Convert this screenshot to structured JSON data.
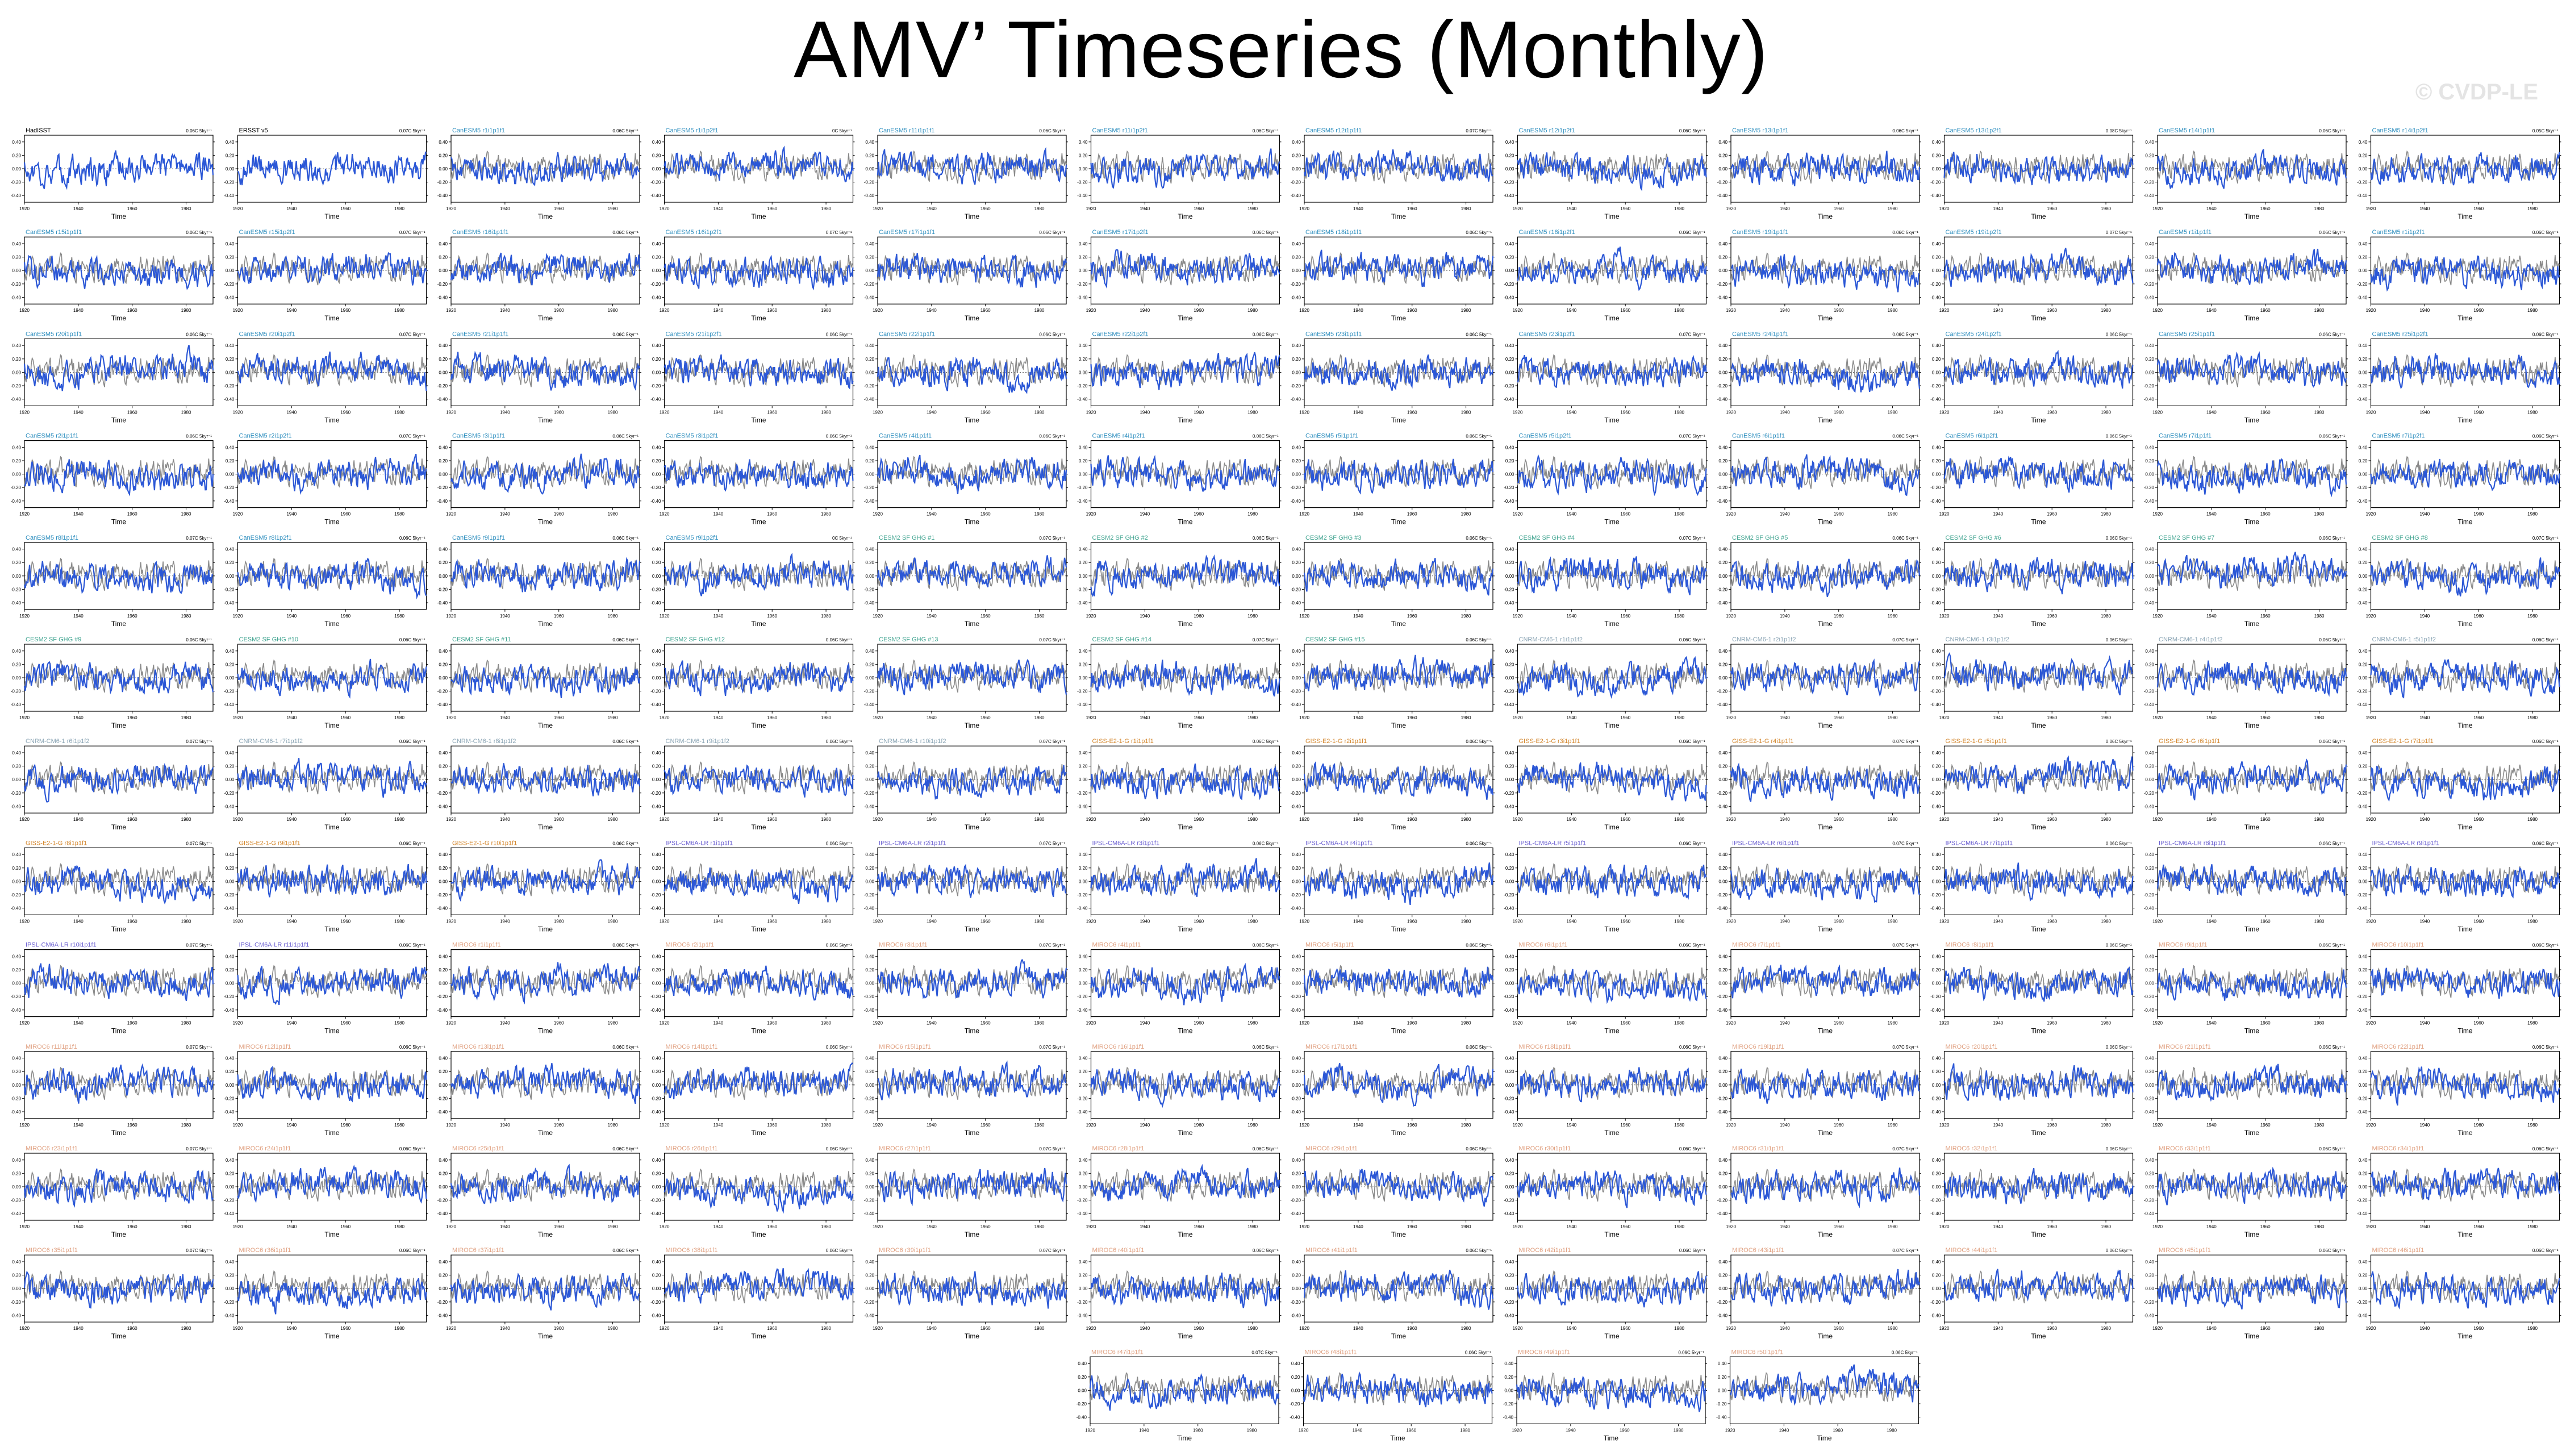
{
  "page": {
    "title": "AMV’ Timeseries (Monthly)",
    "watermark": "© CVDP-LE"
  },
  "colors": {
    "model_line": "#2b57d6",
    "obs_line": "#8a8a8a",
    "label_cesm2_lens": "#2f8fbf",
    "label_canesm5": "#2f8fbf",
    "label_cesm2_sf": "#3fa38f",
    "label_cnrm": "#8aa4b4",
    "label_giss": "#d3862c",
    "label_ipsl": "#6b5fd1",
    "label_miroc": "#e0a080",
    "label_obs": "#000000"
  },
  "chart_data": {
    "type": "line",
    "xlabel": "Time",
    "x_ticks": [
      "1920",
      "1940",
      "1960",
      "1980"
    ],
    "y_ticks": [
      "0.40",
      "0.20",
      "0.00",
      "-0.20",
      "-0.40"
    ],
    "ylim": [
      -0.5,
      0.5
    ],
    "panels": [
      {
        "label": "HadISST",
        "trend": "0.06C 5kyr⁻¹",
        "group": "obs"
      },
      {
        "label": "ERSST v5",
        "trend": "0.07C 5kyr⁻¹",
        "group": "obs"
      },
      {
        "label": "CanESM5 r1i1p1f1",
        "trend": "0.06C 5kyr⁻¹",
        "group": "canesm5"
      },
      {
        "label": "CanESM5 r1i1p2f1",
        "trend": "0C 5kyr⁻¹",
        "group": "canesm5"
      },
      {
        "label": "CanESM5 r11i1p1f1",
        "trend": "0.06C 5kyr⁻¹",
        "group": "canesm5"
      },
      {
        "label": "CanESM5 r11i1p2f1",
        "trend": "0.06C 5kyr⁻¹",
        "group": "canesm5"
      },
      {
        "label": "CanESM5 r12i1p1f1",
        "trend": "0.07C 5kyr⁻¹",
        "group": "canesm5"
      },
      {
        "label": "CanESM5 r12i1p2f1",
        "trend": "0.06C 5kyr⁻¹",
        "group": "canesm5"
      },
      {
        "label": "CanESM5 r13i1p1f1",
        "trend": "0.06C 5kyr⁻¹",
        "group": "canesm5"
      },
      {
        "label": "CanESM5 r13i1p2f1",
        "trend": "0.08C 5kyr⁻¹",
        "group": "canesm5"
      },
      {
        "label": "CanESM5 r14i1p1f1",
        "trend": "0.06C 5kyr⁻¹",
        "group": "canesm5"
      },
      {
        "label": "CanESM5 r14i1p2f1",
        "trend": "0.05C 5kyr⁻¹",
        "group": "canesm5"
      },
      {
        "label": "CanESM5 r15i1p1f1",
        "trend": "0.06C 5kyr⁻¹",
        "group": "canesm5"
      },
      {
        "label": "CanESM5 r15i1p2f1",
        "trend": "0.07C 5kyr⁻¹",
        "group": "canesm5"
      },
      {
        "label": "CanESM5 r16i1p1f1",
        "trend": "0.06C 5kyr⁻¹",
        "group": "canesm5"
      },
      {
        "label": "CanESM5 r16i1p2f1",
        "trend": "0.07C 5kyr⁻¹",
        "group": "canesm5"
      },
      {
        "label": "CanESM5 r17i1p1f1",
        "trend": "0.06C 5kyr⁻¹",
        "group": "canesm5"
      },
      {
        "label": "CanESM5 r17i1p2f1",
        "trend": "0.06C 5kyr⁻¹",
        "group": "canesm5"
      },
      {
        "label": "CanESM5 r18i1p1f1",
        "trend": "0.06C 5kyr⁻¹",
        "group": "canesm5"
      },
      {
        "label": "CanESM5 r18i1p2f1",
        "trend": "0.06C 5kyr⁻¹",
        "group": "canesm5"
      },
      {
        "label": "CanESM5 r19i1p1f1",
        "trend": "0.06C 5kyr⁻¹",
        "group": "canesm5"
      },
      {
        "label": "CanESM5 r19i1p2f1",
        "trend": "0.07C 5kyr⁻¹",
        "group": "canesm5"
      },
      {
        "label": "CanESM5 r1i1p1f1",
        "trend": "0.06C 5kyr⁻¹",
        "group": "canesm5"
      },
      {
        "label": "CanESM5 r1i1p2f1",
        "trend": "0.06C 5kyr⁻¹",
        "group": "canesm5"
      },
      {
        "label": "CanESM5 r20i1p1f1",
        "trend": "0.06C 5kyr⁻¹",
        "group": "canesm5"
      },
      {
        "label": "CanESM5 r20i1p2f1",
        "trend": "0.07C 5kyr⁻¹",
        "group": "canesm5"
      },
      {
        "label": "CanESM5 r21i1p1f1",
        "trend": "0.06C 5kyr⁻¹",
        "group": "canesm5"
      },
      {
        "label": "CanESM5 r21i1p2f1",
        "trend": "0.06C 5kyr⁻¹",
        "group": "canesm5"
      },
      {
        "label": "CanESM5 r22i1p1f1",
        "trend": "0.06C 5kyr⁻¹",
        "group": "canesm5"
      },
      {
        "label": "CanESM5 r22i1p2f1",
        "trend": "0.06C 5kyr⁻¹",
        "group": "canesm5"
      },
      {
        "label": "CanESM5 r23i1p1f1",
        "trend": "0.06C 5kyr⁻¹",
        "group": "canesm5"
      },
      {
        "label": "CanESM5 r23i1p2f1",
        "trend": "0.07C 5kyr⁻¹",
        "group": "canesm5"
      },
      {
        "label": "CanESM5 r24i1p1f1",
        "trend": "0.06C 5kyr⁻¹",
        "group": "canesm5"
      },
      {
        "label": "CanESM5 r24i1p2f1",
        "trend": "0.06C 5kyr⁻¹",
        "group": "canesm5"
      },
      {
        "label": "CanESM5 r25i1p1f1",
        "trend": "0.06C 5kyr⁻¹",
        "group": "canesm5"
      },
      {
        "label": "CanESM5 r25i1p2f1",
        "trend": "0.06C 5kyr⁻¹",
        "group": "canesm5"
      },
      {
        "label": "CanESM5 r2i1p1f1",
        "trend": "0.06C 5kyr⁻¹",
        "group": "canesm5"
      },
      {
        "label": "CanESM5 r2i1p2f1",
        "trend": "0.07C 5kyr⁻¹",
        "group": "canesm5"
      },
      {
        "label": "CanESM5 r3i1p1f1",
        "trend": "0.06C 5kyr⁻¹",
        "group": "canesm5"
      },
      {
        "label": "CanESM5 r3i1p2f1",
        "trend": "0.06C 5kyr⁻¹",
        "group": "canesm5"
      },
      {
        "label": "CanESM5 r4i1p1f1",
        "trend": "0.06C 5kyr⁻¹",
        "group": "canesm5"
      },
      {
        "label": "CanESM5 r4i1p2f1",
        "trend": "0.06C 5kyr⁻¹",
        "group": "canesm5"
      },
      {
        "label": "CanESM5 r5i1p1f1",
        "trend": "0.06C 5kyr⁻¹",
        "group": "canesm5"
      },
      {
        "label": "CanESM5 r5i1p2f1",
        "trend": "0.07C 5kyr⁻¹",
        "group": "canesm5"
      },
      {
        "label": "CanESM5 r6i1p1f1",
        "trend": "0.06C 5kyr⁻¹",
        "group": "canesm5"
      },
      {
        "label": "CanESM5 r6i1p2f1",
        "trend": "0.06C 5kyr⁻¹",
        "group": "canesm5"
      },
      {
        "label": "CanESM5 r7i1p1f1",
        "trend": "0.06C 5kyr⁻¹",
        "group": "canesm5"
      },
      {
        "label": "CanESM5 r7i1p2f1",
        "trend": "0.06C 5kyr⁻¹",
        "group": "canesm5"
      },
      {
        "label": "CanESM5 r8i1p1f1",
        "trend": "0.07C 5kyr⁻¹",
        "group": "canesm5"
      },
      {
        "label": "CanESM5 r8i1p2f1",
        "trend": "0.06C 5kyr⁻¹",
        "group": "canesm5"
      },
      {
        "label": "CanESM5 r9i1p1f1",
        "trend": "0.06C 5kyr⁻¹",
        "group": "canesm5"
      },
      {
        "label": "CanESM5 r9i1p2f1",
        "trend": "0C 5kyr⁻¹",
        "group": "canesm5"
      },
      {
        "label": "CESM2 SF GHG #1",
        "trend": "0.07C 5kyr⁻¹",
        "group": "cesm2_sf"
      },
      {
        "label": "CESM2 SF GHG #2",
        "trend": "0.06C 5kyr⁻¹",
        "group": "cesm2_sf"
      },
      {
        "label": "CESM2 SF GHG #3",
        "trend": "0.06C 5kyr⁻¹",
        "group": "cesm2_sf"
      },
      {
        "label": "CESM2 SF GHG #4",
        "trend": "0.07C 5kyr⁻¹",
        "group": "cesm2_sf"
      },
      {
        "label": "CESM2 SF GHG #5",
        "trend": "0.06C 5kyr⁻¹",
        "group": "cesm2_sf"
      },
      {
        "label": "CESM2 SF GHG #6",
        "trend": "0.06C 5kyr⁻¹",
        "group": "cesm2_sf"
      },
      {
        "label": "CESM2 SF GHG #7",
        "trend": "0.06C 5kyr⁻¹",
        "group": "cesm2_sf"
      },
      {
        "label": "CESM2 SF GHG #8",
        "trend": "0.07C 5kyr⁻¹",
        "group": "cesm2_sf"
      },
      {
        "label": "CESM2 SF GHG #9",
        "trend": "0.06C 5kyr⁻¹",
        "group": "cesm2_sf"
      },
      {
        "label": "CESM2 SF GHG #10",
        "trend": "0.06C 5kyr⁻¹",
        "group": "cesm2_sf"
      },
      {
        "label": "CESM2 SF GHG #11",
        "trend": "0.06C 5kyr⁻¹",
        "group": "cesm2_sf"
      },
      {
        "label": "CESM2 SF GHG #12",
        "trend": "0.06C 5kyr⁻¹",
        "group": "cesm2_sf"
      },
      {
        "label": "CESM2 SF GHG #13",
        "trend": "0.07C 5kyr⁻¹",
        "group": "cesm2_sf"
      },
      {
        "label": "CESM2 SF GHG #14",
        "trend": "0.07C 5kyr⁻¹",
        "group": "cesm2_sf"
      },
      {
        "label": "CESM2 SF GHG #15",
        "trend": "0.06C 5kyr⁻¹",
        "group": "cesm2_sf"
      },
      {
        "label": "CNRM-CM6-1 r1i1p1f2",
        "trend": "0.06C 5kyr⁻¹",
        "group": "cnrm"
      },
      {
        "label": "CNRM-CM6-1 r2i1p1f2",
        "trend": "0.07C 5kyr⁻¹",
        "group": "cnrm"
      },
      {
        "label": "CNRM-CM6-1 r3i1p1f2",
        "trend": "0.06C 5kyr⁻¹",
        "group": "cnrm"
      },
      {
        "label": "CNRM-CM6-1 r4i1p1f2",
        "trend": "0.06C 5kyr⁻¹",
        "group": "cnrm"
      },
      {
        "label": "CNRM-CM6-1 r5i1p1f2",
        "trend": "0.06C 5kyr⁻¹",
        "group": "cnrm"
      },
      {
        "label": "CNRM-CM6-1 r6i1p1f2",
        "trend": "0.07C 5kyr⁻¹",
        "group": "cnrm"
      },
      {
        "label": "CNRM-CM6-1 r7i1p1f2",
        "trend": "0.06C 5kyr⁻¹",
        "group": "cnrm"
      },
      {
        "label": "CNRM-CM6-1 r8i1p1f2",
        "trend": "0.06C 5kyr⁻¹",
        "group": "cnrm"
      },
      {
        "label": "CNRM-CM6-1 r9i1p1f2",
        "trend": "0.06C 5kyr⁻¹",
        "group": "cnrm"
      },
      {
        "label": "CNRM-CM6-1 r10i1p1f2",
        "trend": "0.07C 5kyr⁻¹",
        "group": "cnrm"
      },
      {
        "label": "GISS-E2-1-G r1i1p1f1",
        "trend": "0.06C 5kyr⁻¹",
        "group": "giss"
      },
      {
        "label": "GISS-E2-1-G r2i1p1f1",
        "trend": "0.06C 5kyr⁻¹",
        "group": "giss"
      },
      {
        "label": "GISS-E2-1-G r3i1p1f1",
        "trend": "0.06C 5kyr⁻¹",
        "group": "giss"
      },
      {
        "label": "GISS-E2-1-G r4i1p1f1",
        "trend": "0.07C 5kyr⁻¹",
        "group": "giss"
      },
      {
        "label": "GISS-E2-1-G r5i1p1f1",
        "trend": "0.06C 5kyr⁻¹",
        "group": "giss"
      },
      {
        "label": "GISS-E2-1-G r6i1p1f1",
        "trend": "0.06C 5kyr⁻¹",
        "group": "giss"
      },
      {
        "label": "GISS-E2-1-G r7i1p1f1",
        "trend": "0.06C 5kyr⁻¹",
        "group": "giss"
      },
      {
        "label": "GISS-E2-1-G r8i1p1f1",
        "trend": "0.07C 5kyr⁻¹",
        "group": "giss"
      },
      {
        "label": "GISS-E2-1-G r9i1p1f1",
        "trend": "0.06C 5kyr⁻¹",
        "group": "giss"
      },
      {
        "label": "GISS-E2-1-G r10i1p1f1",
        "trend": "0.06C 5kyr⁻¹",
        "group": "giss"
      },
      {
        "label": "IPSL-CM6A-LR r1i1p1f1",
        "trend": "0.06C 5kyr⁻¹",
        "group": "ipsl"
      },
      {
        "label": "IPSL-CM6A-LR r2i1p1f1",
        "trend": "0.07C 5kyr⁻¹",
        "group": "ipsl"
      },
      {
        "label": "IPSL-CM6A-LR r3i1p1f1",
        "trend": "0.06C 5kyr⁻¹",
        "group": "ipsl"
      },
      {
        "label": "IPSL-CM6A-LR r4i1p1f1",
        "trend": "0.06C 5kyr⁻¹",
        "group": "ipsl"
      },
      {
        "label": "IPSL-CM6A-LR r5i1p1f1",
        "trend": "0.06C 5kyr⁻¹",
        "group": "ipsl"
      },
      {
        "label": "IPSL-CM6A-LR r6i1p1f1",
        "trend": "0.07C 5kyr⁻¹",
        "group": "ipsl"
      },
      {
        "label": "IPSL-CM6A-LR r7i1p1f1",
        "trend": "0.06C 5kyr⁻¹",
        "group": "ipsl"
      },
      {
        "label": "IPSL-CM6A-LR r8i1p1f1",
        "trend": "0.06C 5kyr⁻¹",
        "group": "ipsl"
      },
      {
        "label": "IPSL-CM6A-LR r9i1p1f1",
        "trend": "0.06C 5kyr⁻¹",
        "group": "ipsl"
      },
      {
        "label": "IPSL-CM6A-LR r10i1p1f1",
        "trend": "0.07C 5kyr⁻¹",
        "group": "ipsl"
      },
      {
        "label": "IPSL-CM6A-LR r11i1p1f1",
        "trend": "0.06C 5kyr⁻¹",
        "group": "ipsl"
      },
      {
        "label": "MIROC6 r1i1p1f1",
        "trend": "0.06C 5kyr⁻¹",
        "group": "miroc"
      },
      {
        "label": "MIROC6 r2i1p1f1",
        "trend": "0.06C 5kyr⁻¹",
        "group": "miroc"
      },
      {
        "label": "MIROC6 r3i1p1f1",
        "trend": "0.07C 5kyr⁻¹",
        "group": "miroc"
      },
      {
        "label": "MIROC6 r4i1p1f1",
        "trend": "0.06C 5kyr⁻¹",
        "group": "miroc"
      },
      {
        "label": "MIROC6 r5i1p1f1",
        "trend": "0.06C 5kyr⁻¹",
        "group": "miroc"
      },
      {
        "label": "MIROC6 r6i1p1f1",
        "trend": "0.06C 5kyr⁻¹",
        "group": "miroc"
      },
      {
        "label": "MIROC6 r7i1p1f1",
        "trend": "0.07C 5kyr⁻¹",
        "group": "miroc"
      },
      {
        "label": "MIROC6 r8i1p1f1",
        "trend": "0.06C 5kyr⁻¹",
        "group": "miroc"
      },
      {
        "label": "MIROC6 r9i1p1f1",
        "trend": "0.06C 5kyr⁻¹",
        "group": "miroc"
      },
      {
        "label": "MIROC6 r10i1p1f1",
        "trend": "0.06C 5kyr⁻¹",
        "group": "miroc"
      },
      {
        "label": "MIROC6 r11i1p1f1",
        "trend": "0.07C 5kyr⁻¹",
        "group": "miroc"
      },
      {
        "label": "MIROC6 r12i1p1f1",
        "trend": "0.06C 5kyr⁻¹",
        "group": "miroc"
      },
      {
        "label": "MIROC6 r13i1p1f1",
        "trend": "0.06C 5kyr⁻¹",
        "group": "miroc"
      },
      {
        "label": "MIROC6 r14i1p1f1",
        "trend": "0.06C 5kyr⁻¹",
        "group": "miroc"
      },
      {
        "label": "MIROC6 r15i1p1f1",
        "trend": "0.07C 5kyr⁻¹",
        "group": "miroc"
      },
      {
        "label": "MIROC6 r16i1p1f1",
        "trend": "0.06C 5kyr⁻¹",
        "group": "miroc"
      },
      {
        "label": "MIROC6 r17i1p1f1",
        "trend": "0.06C 5kyr⁻¹",
        "group": "miroc"
      },
      {
        "label": "MIROC6 r18i1p1f1",
        "trend": "0.06C 5kyr⁻¹",
        "group": "miroc"
      },
      {
        "label": "MIROC6 r19i1p1f1",
        "trend": "0.07C 5kyr⁻¹",
        "group": "miroc"
      },
      {
        "label": "MIROC6 r20i1p1f1",
        "trend": "0.06C 5kyr⁻¹",
        "group": "miroc"
      },
      {
        "label": "MIROC6 r21i1p1f1",
        "trend": "0.06C 5kyr⁻¹",
        "group": "miroc"
      },
      {
        "label": "MIROC6 r22i1p1f1",
        "trend": "0.06C 5kyr⁻¹",
        "group": "miroc"
      },
      {
        "label": "MIROC6 r23i1p1f1",
        "trend": "0.07C 5kyr⁻¹",
        "group": "miroc"
      },
      {
        "label": "MIROC6 r24i1p1f1",
        "trend": "0.06C 5kyr⁻¹",
        "group": "miroc"
      },
      {
        "label": "MIROC6 r25i1p1f1",
        "trend": "0.06C 5kyr⁻¹",
        "group": "miroc"
      },
      {
        "label": "MIROC6 r26i1p1f1",
        "trend": "0.06C 5kyr⁻¹",
        "group": "miroc"
      },
      {
        "label": "MIROC6 r27i1p1f1",
        "trend": "0.07C 5kyr⁻¹",
        "group": "miroc"
      },
      {
        "label": "MIROC6 r28i1p1f1",
        "trend": "0.06C 5kyr⁻¹",
        "group": "miroc"
      },
      {
        "label": "MIROC6 r29i1p1f1",
        "trend": "0.06C 5kyr⁻¹",
        "group": "miroc"
      },
      {
        "label": "MIROC6 r30i1p1f1",
        "trend": "0.06C 5kyr⁻¹",
        "group": "miroc"
      },
      {
        "label": "MIROC6 r31i1p1f1",
        "trend": "0.07C 5kyr⁻¹",
        "group": "miroc"
      },
      {
        "label": "MIROC6 r32i1p1f1",
        "trend": "0.06C 5kyr⁻¹",
        "group": "miroc"
      },
      {
        "label": "MIROC6 r33i1p1f1",
        "trend": "0.06C 5kyr⁻¹",
        "group": "miroc"
      },
      {
        "label": "MIROC6 r34i1p1f1",
        "trend": "0.06C 5kyr⁻¹",
        "group": "miroc"
      },
      {
        "label": "MIROC6 r35i1p1f1",
        "trend": "0.07C 5kyr⁻¹",
        "group": "miroc"
      },
      {
        "label": "MIROC6 r36i1p1f1",
        "trend": "0.06C 5kyr⁻¹",
        "group": "miroc"
      },
      {
        "label": "MIROC6 r37i1p1f1",
        "trend": "0.06C 5kyr⁻¹",
        "group": "miroc"
      },
      {
        "label": "MIROC6 r38i1p1f1",
        "trend": "0.06C 5kyr⁻¹",
        "group": "miroc"
      },
      {
        "label": "MIROC6 r39i1p1f1",
        "trend": "0.07C 5kyr⁻¹",
        "group": "miroc"
      },
      {
        "label": "MIROC6 r40i1p1f1",
        "trend": "0.06C 5kyr⁻¹",
        "group": "miroc"
      },
      {
        "label": "MIROC6 r41i1p1f1",
        "trend": "0.06C 5kyr⁻¹",
        "group": "miroc"
      },
      {
        "label": "MIROC6 r42i1p1f1",
        "trend": "0.06C 5kyr⁻¹",
        "group": "miroc"
      },
      {
        "label": "MIROC6 r43i1p1f1",
        "trend": "0.07C 5kyr⁻¹",
        "group": "miroc"
      },
      {
        "label": "MIROC6 r44i1p1f1",
        "trend": "0.06C 5kyr⁻¹",
        "group": "miroc"
      },
      {
        "label": "MIROC6 r45i1p1f1",
        "trend": "0.06C 5kyr⁻¹",
        "group": "miroc"
      },
      {
        "label": "MIROC6 r46i1p1f1",
        "trend": "0.06C 5kyr⁻¹",
        "group": "miroc"
      },
      {
        "label": "MIROC6 r47i1p1f1",
        "trend": "0.07C 5kyr⁻¹",
        "group": "miroc"
      },
      {
        "label": "MIROC6 r48i1p1f1",
        "trend": "0.06C 5kyr⁻¹",
        "group": "miroc"
      },
      {
        "label": "MIROC6 r49i1p1f1",
        "trend": "0.06C 5kyr⁻¹",
        "group": "miroc"
      },
      {
        "label": "MIROC6 r50i1p1f1",
        "trend": "0.06C 5kyr⁻¹",
        "group": "miroc"
      }
    ]
  }
}
